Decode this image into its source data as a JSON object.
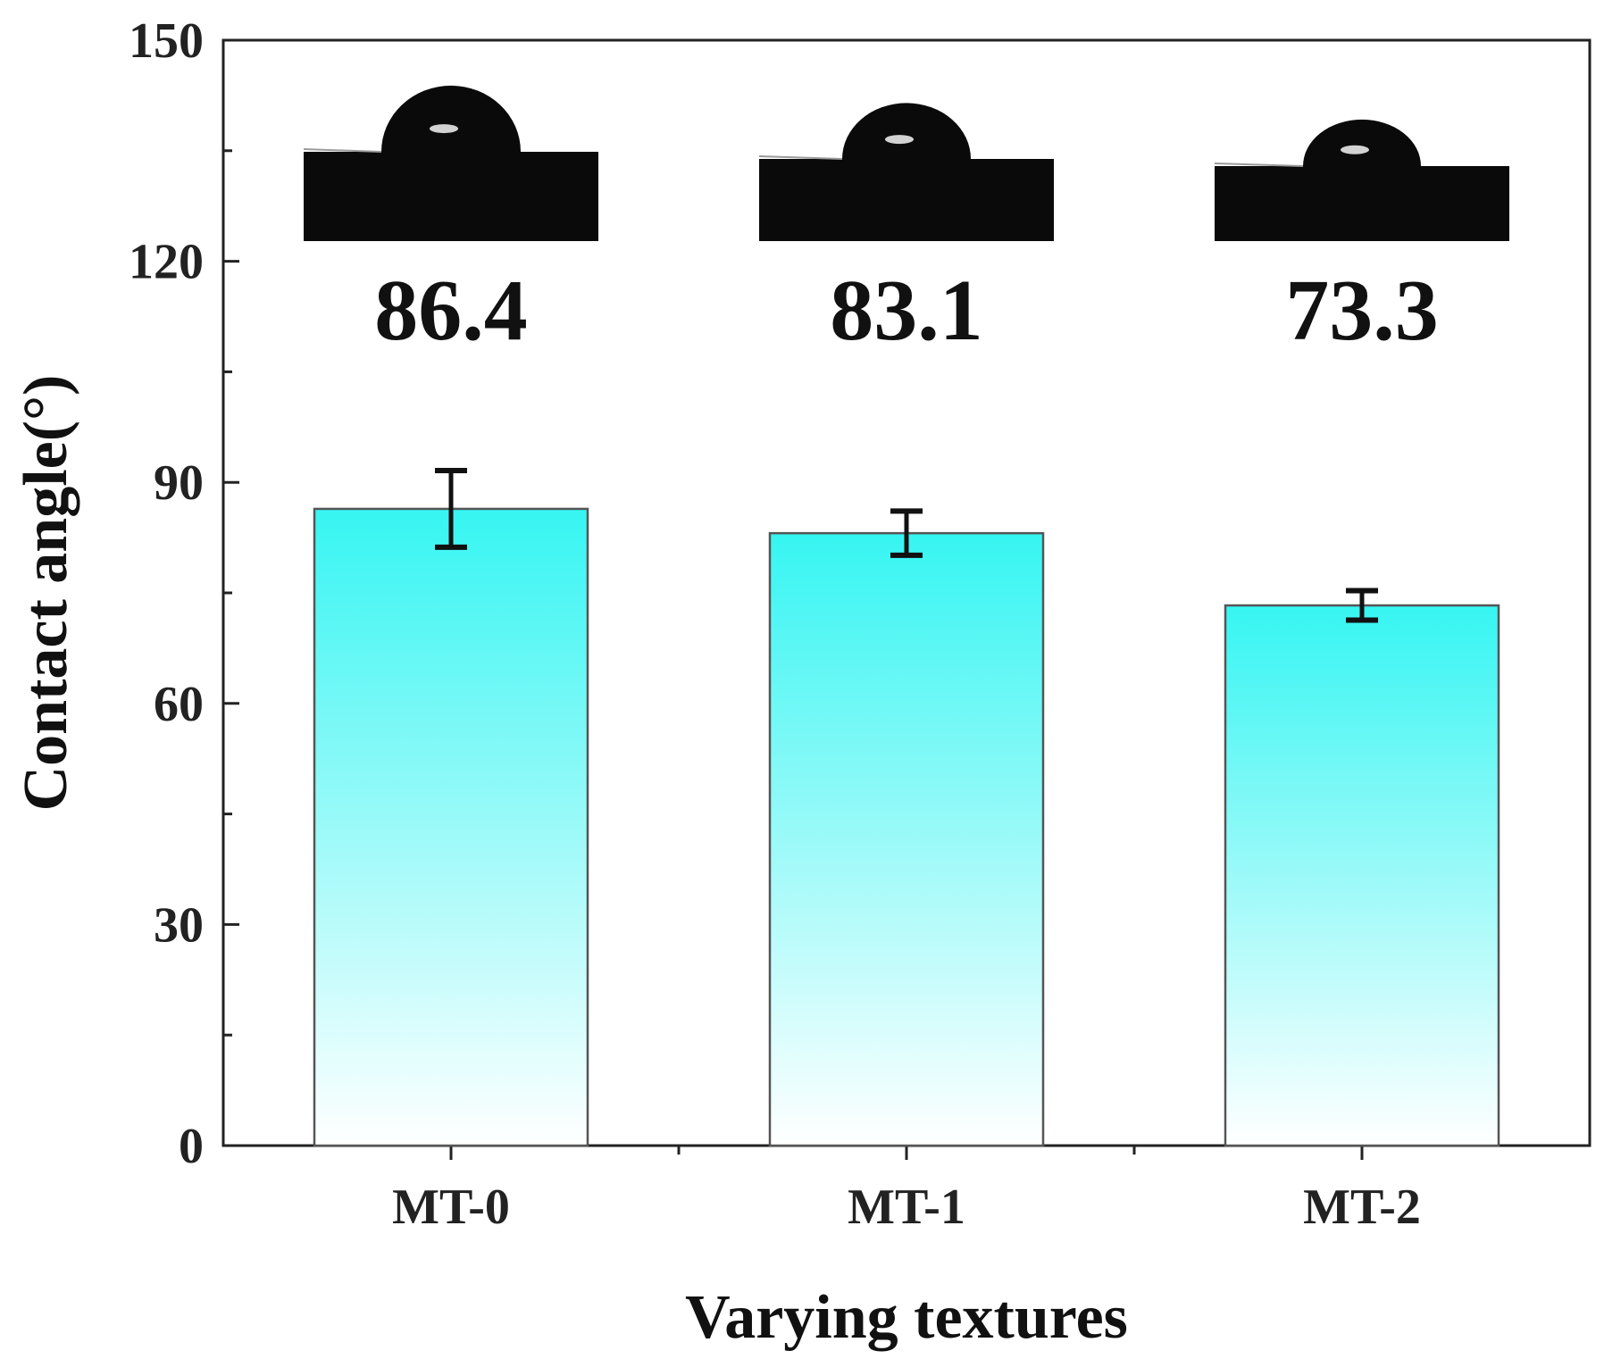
{
  "chart_data": {
    "type": "bar",
    "categories": [
      "MT-0",
      "MT-1",
      "MT-2"
    ],
    "values": [
      86.4,
      83.1,
      73.3
    ],
    "error": [
      5.2,
      3.0,
      2.0
    ],
    "value_labels": [
      "86.4",
      "83.1",
      "73.3"
    ],
    "xlabel": "Varying textures",
    "ylabel": "Contact angle(°)",
    "ylim": [
      0,
      150
    ],
    "yticks": [
      "0",
      "30",
      "60",
      "90",
      "120",
      "150"
    ],
    "grid": false,
    "bar_color_top": "#36f5f2",
    "bar_color_bottom": "#ffffff",
    "bar_edge_color": "#555555",
    "insets": [
      "droplet-photo",
      "droplet-photo",
      "droplet-photo"
    ]
  }
}
